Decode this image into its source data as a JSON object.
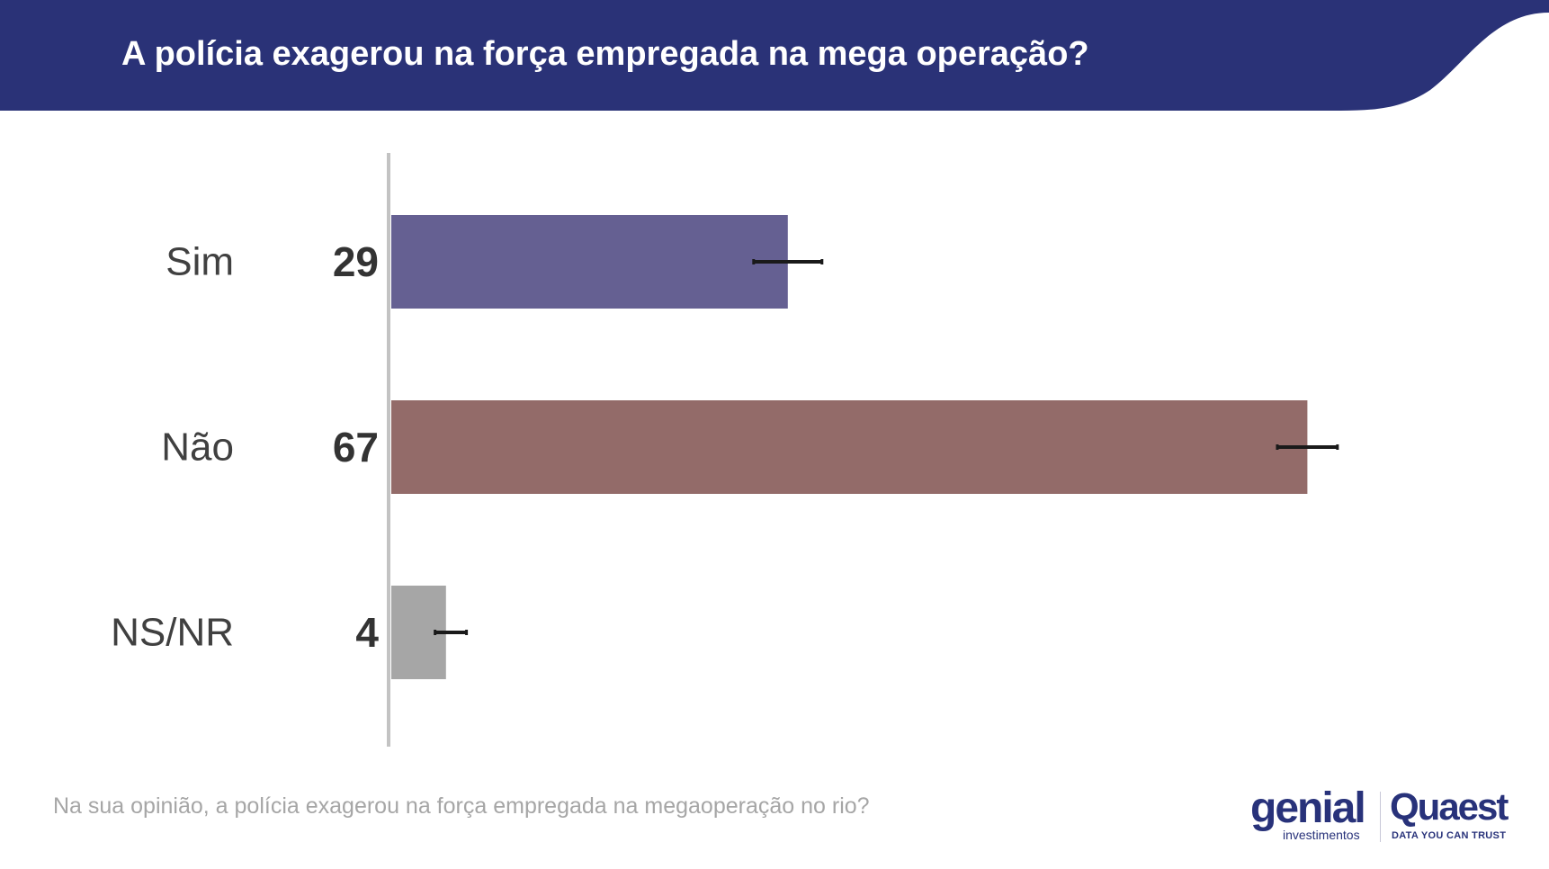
{
  "header": {
    "title": "A polícia exagerou na força empregada na mega operação?",
    "background_color": "#2a3277"
  },
  "chart_data": {
    "type": "bar",
    "orientation": "horizontal",
    "categories": [
      "Sim",
      "Não",
      "NS/NR"
    ],
    "values": [
      29,
      67,
      4
    ],
    "value_labels": [
      "29",
      "67",
      "4"
    ],
    "error_bar_ranges": [
      [
        26.5,
        31.5
      ],
      [
        64.8,
        69.2
      ],
      [
        3.2,
        5.5
      ]
    ],
    "colors": [
      "#656092",
      "#936b69",
      "#a6a6a6"
    ],
    "xlim": [
      0,
      100
    ],
    "grid": false,
    "legend": "none",
    "title": "A polícia exagerou na força empregada na mega operação?"
  },
  "footnote": "Na sua opinião, a polícia exagerou na força empregada na megaoperação no rio?",
  "logos": {
    "genial": {
      "name": "genial",
      "subtitle": "investimentos"
    },
    "quaest": {
      "name": "Quaest",
      "tagline": "DATA YOU CAN TRUST"
    }
  }
}
